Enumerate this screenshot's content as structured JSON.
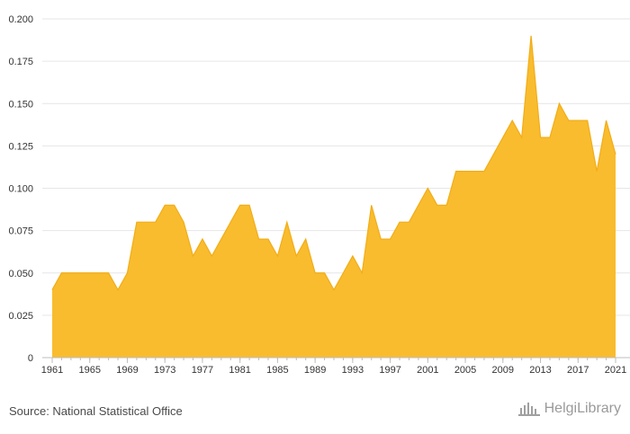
{
  "chart_data": {
    "type": "area",
    "title": "",
    "xlabel": "",
    "ylabel": "",
    "x": [
      1961,
      1962,
      1963,
      1964,
      1965,
      1966,
      1967,
      1968,
      1969,
      1970,
      1971,
      1972,
      1973,
      1974,
      1975,
      1976,
      1977,
      1978,
      1979,
      1980,
      1981,
      1982,
      1983,
      1984,
      1985,
      1986,
      1987,
      1988,
      1989,
      1990,
      1991,
      1992,
      1993,
      1994,
      1995,
      1996,
      1997,
      1998,
      1999,
      2000,
      2001,
      2002,
      2003,
      2004,
      2005,
      2006,
      2007,
      2008,
      2009,
      2010,
      2011,
      2012,
      2013,
      2014,
      2015,
      2016,
      2017,
      2018,
      2019,
      2020,
      2021
    ],
    "values": [
      0.04,
      0.05,
      0.05,
      0.05,
      0.05,
      0.05,
      0.05,
      0.04,
      0.05,
      0.08,
      0.08,
      0.08,
      0.09,
      0.09,
      0.08,
      0.06,
      0.07,
      0.06,
      0.07,
      0.08,
      0.09,
      0.09,
      0.07,
      0.07,
      0.06,
      0.08,
      0.06,
      0.07,
      0.05,
      0.05,
      0.04,
      0.05,
      0.06,
      0.05,
      0.09,
      0.07,
      0.07,
      0.08,
      0.08,
      0.09,
      0.1,
      0.09,
      0.09,
      0.11,
      0.11,
      0.11,
      0.11,
      0.12,
      0.13,
      0.14,
      0.13,
      0.19,
      0.13,
      0.13,
      0.15,
      0.14,
      0.14,
      0.14,
      0.11,
      0.14,
      0.12
    ],
    "x_ticks": [
      "1961",
      "1965",
      "1969",
      "1973",
      "1977",
      "1981",
      "1985",
      "1989",
      "1993",
      "1997",
      "2001",
      "2005",
      "2009",
      "2013",
      "2017",
      "2021"
    ],
    "y_ticks": [
      "0",
      "0.025",
      "0.050",
      "0.075",
      "0.100",
      "0.125",
      "0.150",
      "0.175",
      "0.200"
    ],
    "ylim": [
      0,
      0.2
    ],
    "xlim": [
      1961,
      2021
    ],
    "grid": true,
    "fill_color": "#f9bc2e",
    "line_color": "#f2ad16"
  },
  "footer": {
    "source": "Source: National Statistical Office",
    "brand": "HelgiLibrary"
  },
  "colors": {
    "grid": "#e6e6e6",
    "axis": "#bdbdbd",
    "text": "#333333"
  }
}
